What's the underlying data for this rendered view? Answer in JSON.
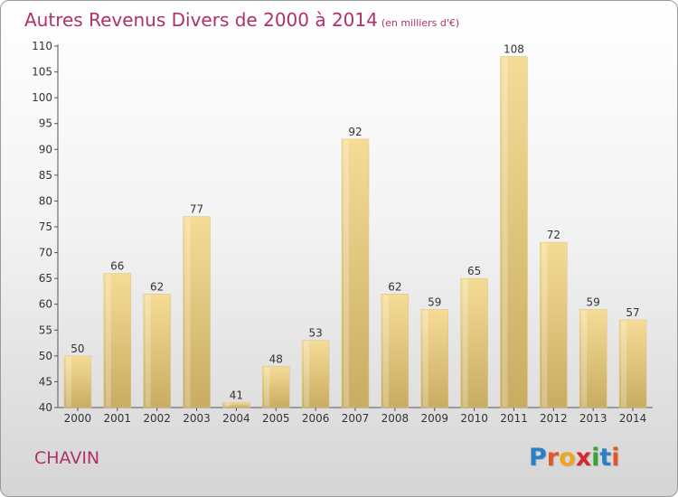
{
  "header": {
    "title": "Autres Revenus Divers de 2000 à 2014",
    "unit": "(en milliers d'€)"
  },
  "footer": {
    "commune": "CHAVIN",
    "logo_letters": [
      "P",
      "r",
      "o",
      "x",
      "i",
      "t",
      "i"
    ],
    "logo_colors": [
      "#2b7fc4",
      "#e8542a",
      "#f0a51e",
      "#d8272f",
      "#3aa13a",
      "#2b7fc4",
      "#e8542a"
    ]
  },
  "colors": {
    "bar_light": "#f5dc96",
    "bar_dark": "#c9ac62",
    "title": "#b0306a"
  },
  "chart_data": {
    "type": "bar",
    "title": "Autres Revenus Divers de 2000 à 2014",
    "xlabel": "",
    "ylabel": "",
    "categories": [
      "2000",
      "2001",
      "2002",
      "2003",
      "2004",
      "2005",
      "2006",
      "2007",
      "2008",
      "2009",
      "2010",
      "2011",
      "2012",
      "2013",
      "2014"
    ],
    "values": [
      50,
      66,
      62,
      77,
      41,
      48,
      53,
      92,
      62,
      59,
      65,
      108,
      72,
      59,
      57
    ],
    "ylim": [
      40,
      110
    ],
    "yticks": [
      40,
      45,
      50,
      55,
      60,
      65,
      70,
      75,
      80,
      85,
      90,
      95,
      100,
      105,
      110
    ],
    "grid": false,
    "data_labels": true
  }
}
